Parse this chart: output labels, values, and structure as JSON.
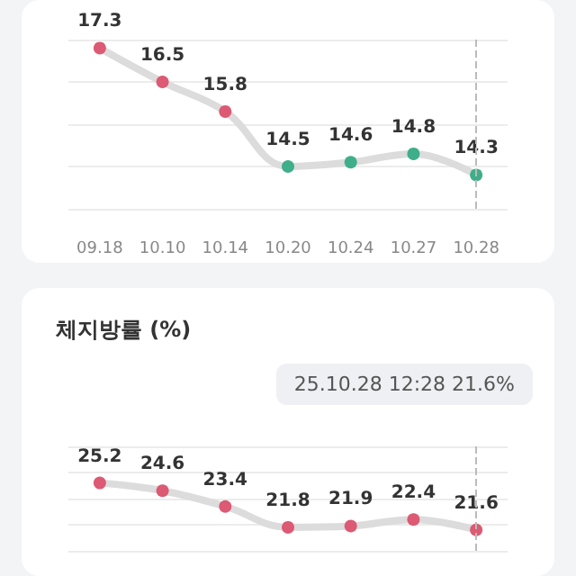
{
  "chart_data": [
    {
      "type": "line",
      "categories": [
        "09.18",
        "10.10",
        "10.14",
        "10.20",
        "10.24",
        "10.27",
        "10.28"
      ],
      "series": [
        {
          "color": "#dcdcdc",
          "values": [
            17.3,
            16.5,
            15.8,
            14.5,
            14.6,
            14.8,
            14.3
          ],
          "colors": [
            "#dc5a73",
            "#dc5a73",
            "#dc5a73",
            "#3fae8a",
            "#3fae8a",
            "#3fae8a",
            "#3fae8a"
          ]
        }
      ],
      "ylim": [
        13.5,
        17.5
      ],
      "yticks": [
        {
          "value": 13.5,
          "label": null
        },
        {
          "value": 14.5,
          "label": null
        },
        {
          "value": 15.5,
          "label": null
        },
        {
          "value": 16.5,
          "label": null
        },
        {
          "value": 17.5,
          "label": null
        }
      ],
      "grid": "y",
      "tick_labels": "x",
      "data_labels": true,
      "marker": "circle",
      "ref_lines": [
        {
          "axis": "x",
          "value": "10.28",
          "color": "#bbbbbb",
          "line_style": "dashed"
        }
      ]
    },
    {
      "type": "line",
      "title": "체지방률 (%)",
      "categories": [
        null,
        null,
        null,
        null,
        null,
        null,
        null
      ],
      "series": [
        {
          "color": "#dcdcdc",
          "values": [
            25.2,
            24.6,
            23.4,
            21.8,
            21.9,
            22.4,
            21.6
          ],
          "colors": [
            "#dc5a73",
            "#dc5a73",
            "#dc5a73",
            "#dc5a73",
            "#dc5a73",
            "#dc5a73",
            "#dc5a73"
          ]
        }
      ],
      "ylim": [
        20,
        28
      ],
      "yticks": [
        {
          "value": 20,
          "label": null
        },
        {
          "value": 22,
          "label": null
        },
        {
          "value": 24,
          "label": null
        },
        {
          "value": 26,
          "label": null
        },
        {
          "value": 28,
          "label": null
        }
      ],
      "grid": "y",
      "tick_labels": false,
      "data_labels": true,
      "marker": "circle",
      "annotations": [
        "25.10.28 12:28 21.6%"
      ]
    }
  ]
}
